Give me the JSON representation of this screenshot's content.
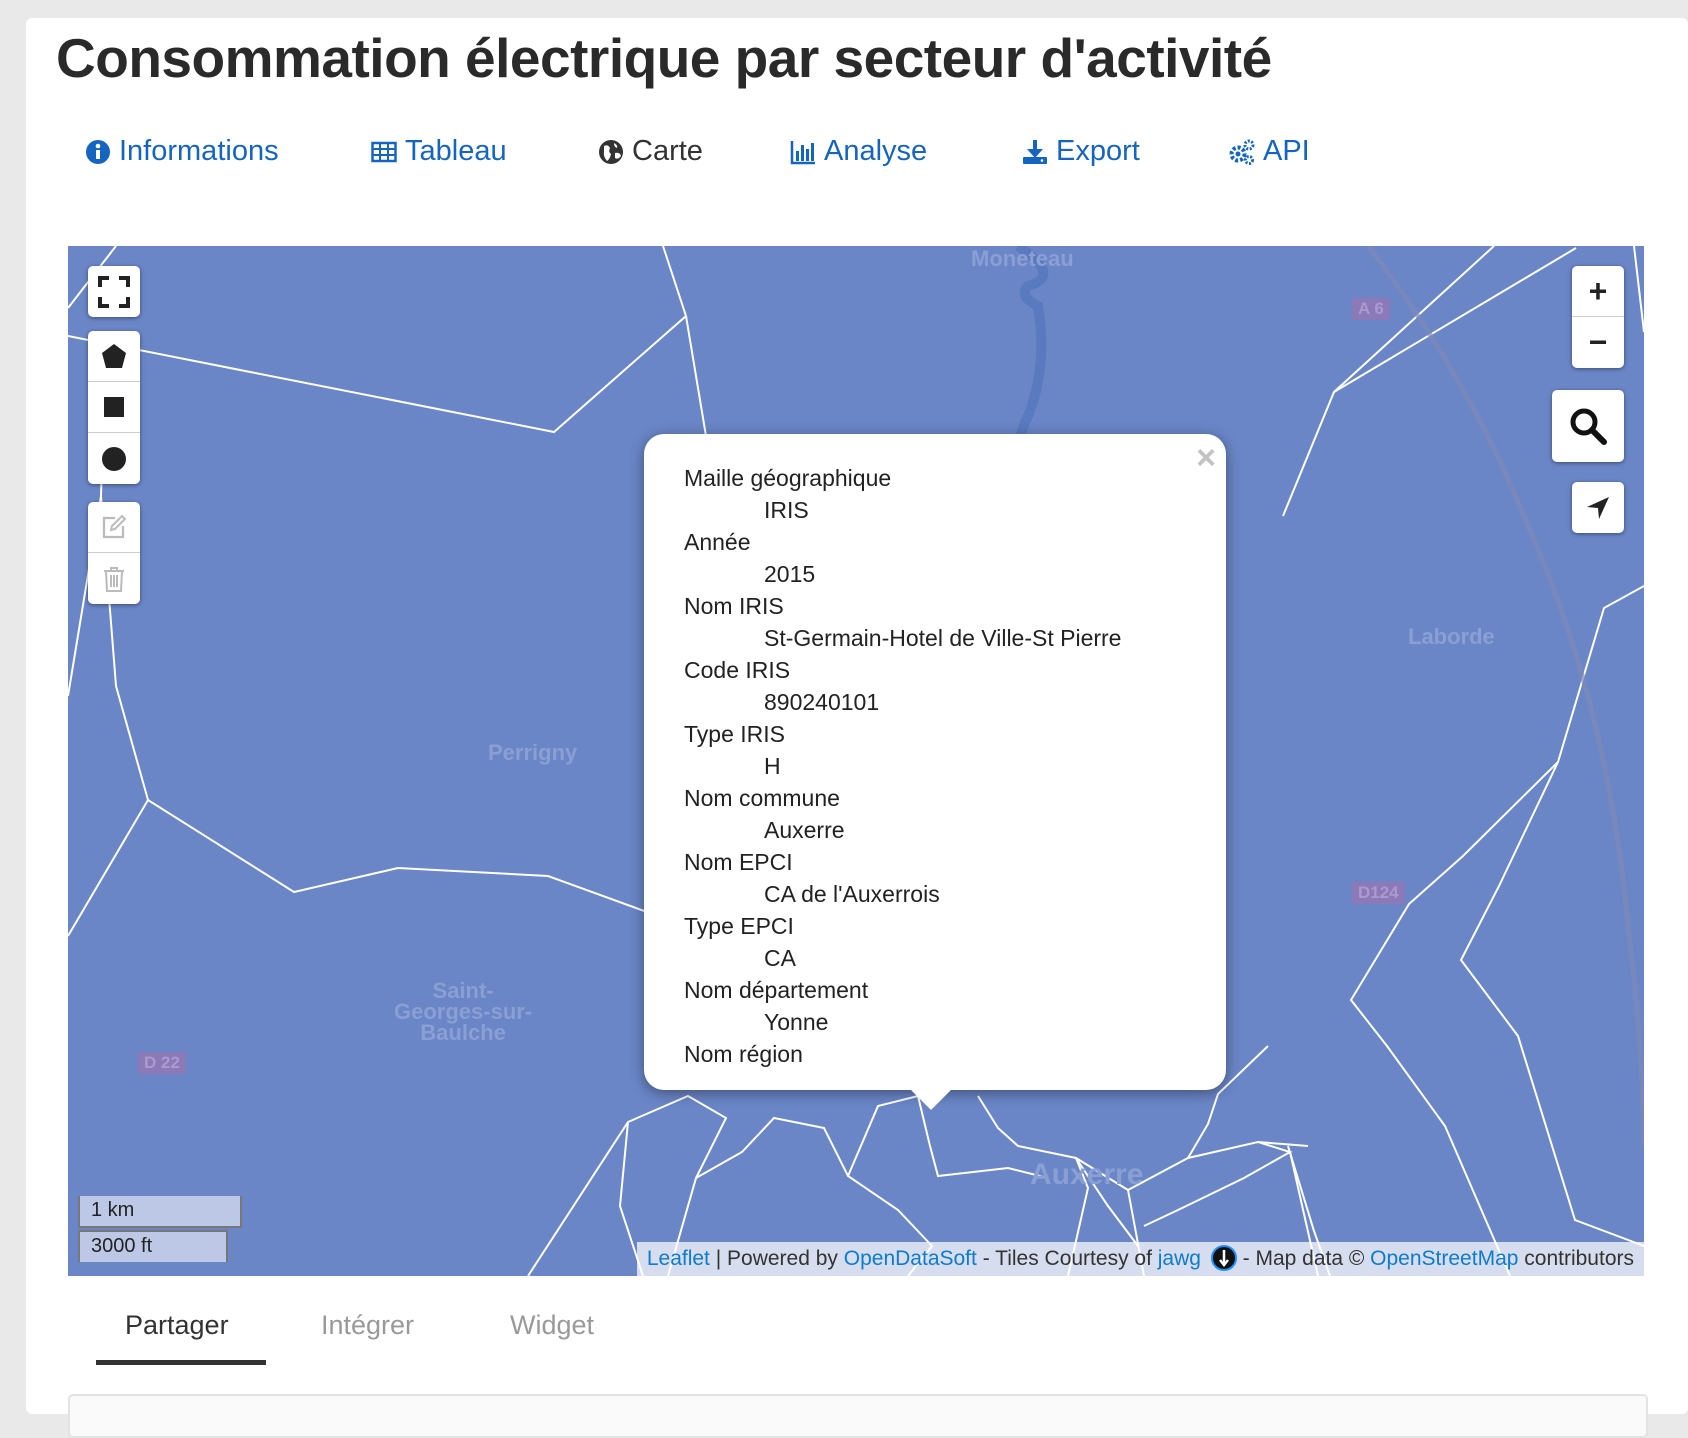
{
  "page": {
    "title": "Consommation électrique par secteur d'activité"
  },
  "nav_tabs": [
    {
      "label": "Informations",
      "icon": "info-circle-icon",
      "active": false
    },
    {
      "label": "Tableau",
      "icon": "table-icon",
      "active": false
    },
    {
      "label": "Carte",
      "icon": "globe-icon",
      "active": true
    },
    {
      "label": "Analyse",
      "icon": "bar-chart-icon",
      "active": false
    },
    {
      "label": "Export",
      "icon": "download-icon",
      "active": false
    },
    {
      "label": "API",
      "icon": "gears-icon",
      "active": false
    }
  ],
  "map": {
    "place_labels": {
      "moneteau": "Moneteau",
      "perrigny": "Perrigny",
      "laborde": "Laborde",
      "saint_georges": "Saint-\nGeorges-sur-\nBaulche",
      "auxerre": "Auxerre"
    },
    "road_labels": {
      "a6": "A 6",
      "d124": "D124",
      "d22": "D 22"
    },
    "controls": {
      "zoom_in": "+",
      "zoom_out": "−"
    },
    "scale": {
      "metric": "1 km",
      "imperial": "3000 ft"
    },
    "attribution": {
      "leaflet": "Leaflet",
      "sep1": " | Powered by ",
      "ods": "OpenDataSoft",
      "tiles": " - Tiles Courtesy of ",
      "jawg": "jawg",
      "mapdata": " - Map data © ",
      "osm": "OpenStreetMap",
      "contributors": " contributors"
    },
    "colors": {
      "fill": "#6a86c7",
      "boundary": "#ffffff",
      "link": "#0f7bcb"
    }
  },
  "popup": {
    "close": "×",
    "fields": [
      {
        "label": "Maille géographique",
        "value": "IRIS"
      },
      {
        "label": "Année",
        "value": "2015"
      },
      {
        "label": "Nom IRIS",
        "value": "St-Germain-Hotel de Ville-St Pierre"
      },
      {
        "label": "Code IRIS",
        "value": "890240101"
      },
      {
        "label": "Type IRIS",
        "value": "H"
      },
      {
        "label": "Nom commune",
        "value": "Auxerre"
      },
      {
        "label": "Nom EPCI",
        "value": "CA de l'Auxerrois"
      },
      {
        "label": "Type EPCI",
        "value": "CA"
      },
      {
        "label": "Nom département",
        "value": "Yonne"
      },
      {
        "label": "Nom région",
        "value": ""
      }
    ]
  },
  "bottom_tabs": [
    {
      "label": "Partager",
      "active": true
    },
    {
      "label": "Intégrer",
      "active": false
    },
    {
      "label": "Widget",
      "active": false
    }
  ]
}
